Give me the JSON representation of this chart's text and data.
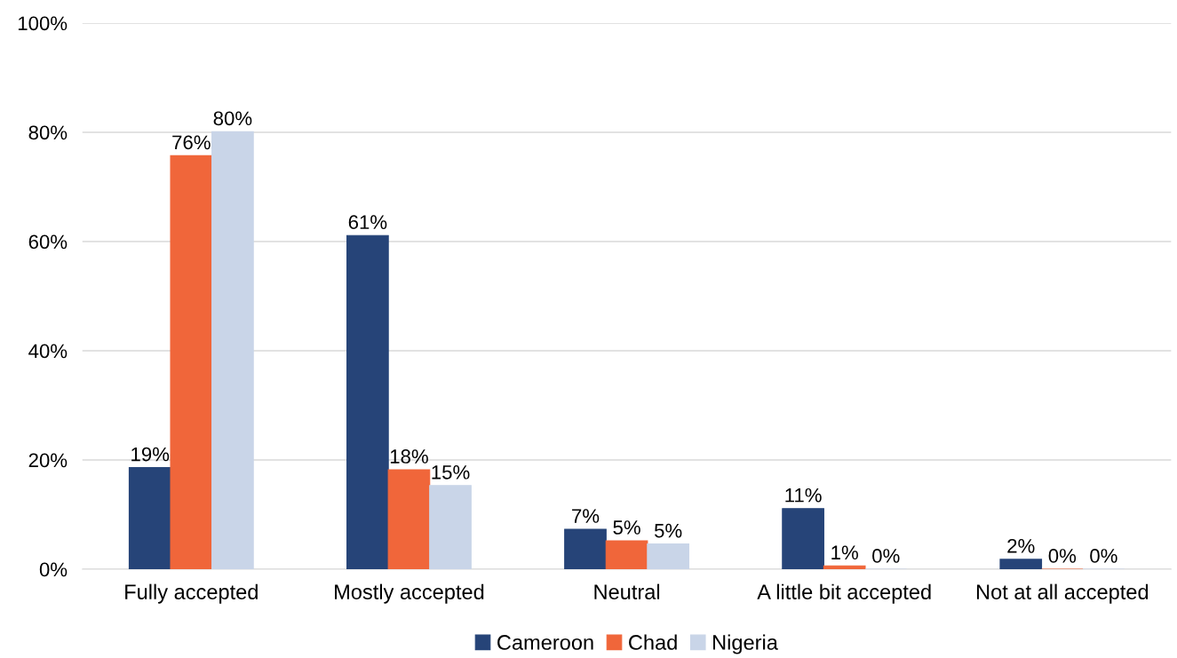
{
  "chart_data": {
    "type": "bar",
    "categories": [
      "Fully accepted",
      "Mostly accepted",
      "Neutral",
      "A little bit accepted",
      "Not at all accepted"
    ],
    "series": [
      {
        "name": "Cameroon",
        "color": "#264478",
        "values": [
          18.6,
          61.1,
          7.3,
          11.1,
          1.8
        ],
        "value_labels": [
          "19%",
          "61%",
          "7%",
          "11%",
          "2%"
        ]
      },
      {
        "name": "Chad",
        "color": "#f0663a",
        "values": [
          75.7,
          18.2,
          5.2,
          0.6,
          0
        ],
        "value_labels": [
          "76%",
          "18%",
          "5%",
          "1%",
          "0%"
        ]
      },
      {
        "name": "Nigeria",
        "color": "#c9d5e8",
        "values": [
          80.1,
          15.3,
          4.6,
          0,
          0
        ],
        "value_labels": [
          "80%",
          "15%",
          "5%",
          "0%",
          "0%"
        ]
      }
    ],
    "ylim": [
      0,
      100
    ],
    "yticks": [
      {
        "value": 0,
        "label": "0%"
      },
      {
        "value": 20,
        "label": "20%"
      },
      {
        "value": 40,
        "label": "40%"
      },
      {
        "value": 60,
        "label": "60%"
      },
      {
        "value": 80,
        "label": "80%"
      },
      {
        "value": 100,
        "label": "100%"
      }
    ],
    "grid": "y",
    "legend": "bottom"
  }
}
